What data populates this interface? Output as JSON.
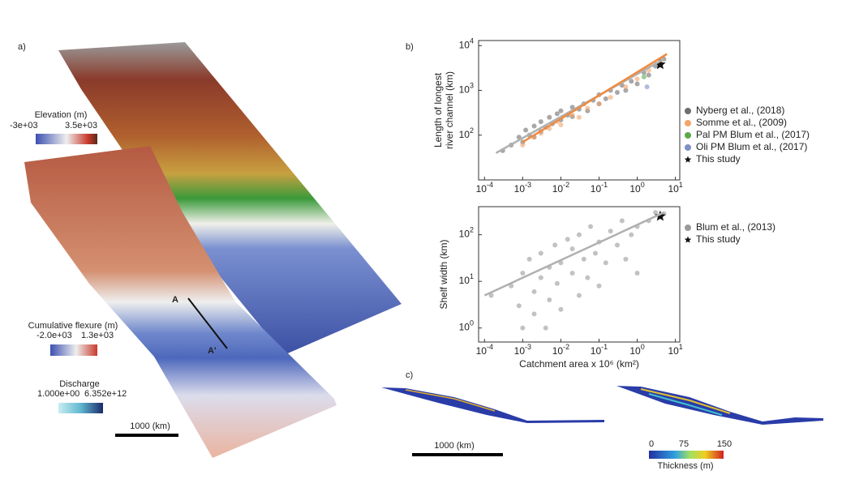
{
  "panel_a": {
    "label": "a)",
    "elevation_title": "Elevation (m)",
    "elevation_min": "-3e+03",
    "elevation_max": "3.5e+03",
    "flexure_title": "Cumulative flexure (m)",
    "flexure_min": "-2.0e+03",
    "flexure_max": "1.3e+03",
    "discharge_title": "Discharge",
    "discharge_min": "1.000e+00",
    "discharge_max": "6.352e+12",
    "scale": "1000 (km)",
    "section_start": "A",
    "section_end": "A'"
  },
  "panel_b_label": "b)",
  "panel_c": {
    "label": "c)",
    "scale": "1000 (km)",
    "thickness_min": "0",
    "thickness_mid": "75",
    "thickness_max": "150",
    "thickness_title": "Thickness (m)"
  },
  "chart_data": [
    {
      "type": "scatter",
      "ylabel": [
        "Length of longest",
        "river channel (km)"
      ],
      "log_x": true,
      "log_y": true,
      "xlim": [
        7e-05,
        13
      ],
      "ylim": [
        10,
        13000
      ],
      "xticks": [
        {
          "value": 0.0001,
          "label": "10",
          "exp": "-4"
        },
        {
          "value": 0.001,
          "label": "10",
          "exp": "-3"
        },
        {
          "value": 0.01,
          "label": "10",
          "exp": "-2"
        },
        {
          "value": 0.1,
          "label": "10",
          "exp": "-1"
        },
        {
          "value": 1,
          "label": "10",
          "exp": "0"
        },
        {
          "value": 10,
          "label": "10",
          "exp": "1"
        }
      ],
      "yticks": [
        {
          "value": 100,
          "label": "10",
          "exp": "2"
        },
        {
          "value": 1000,
          "label": "10",
          "exp": "3"
        },
        {
          "value": 10000,
          "label": "10",
          "exp": "4"
        }
      ],
      "series": [
        {
          "name": "Nyberg et al., (2018)",
          "color": "#6e6e6e",
          "marker": "dot",
          "x": [
            0.0003,
            0.0005,
            0.0008,
            0.001,
            0.0012,
            0.0015,
            0.002,
            0.002,
            0.003,
            0.003,
            0.004,
            0.005,
            0.006,
            0.008,
            0.01,
            0.01,
            0.015,
            0.02,
            0.02,
            0.03,
            0.04,
            0.05,
            0.07,
            0.1,
            0.1,
            0.15,
            0.2,
            0.3,
            0.4,
            0.5,
            0.7,
            1,
            1.5,
            2,
            3,
            5
          ],
          "values": [
            45,
            60,
            90,
            70,
            130,
            100,
            160,
            90,
            200,
            120,
            150,
            250,
            180,
            300,
            220,
            350,
            280,
            420,
            260,
            380,
            500,
            350,
            600,
            500,
            800,
            650,
            1000,
            900,
            1300,
            1000,
            1600,
            1400,
            2500,
            2200,
            3500,
            5000
          ]
        },
        {
          "name": "Somme et al., (2009)",
          "color": "#f4a46a",
          "marker": "dot",
          "x": [
            0.001,
            0.002,
            0.003,
            0.005,
            0.008,
            0.01,
            0.02,
            0.03,
            0.05,
            0.1,
            0.2,
            0.5,
            1,
            2,
            4
          ],
          "values": [
            60,
            90,
            110,
            140,
            200,
            170,
            280,
            250,
            400,
            500,
            700,
            1200,
            1800,
            2800,
            4500
          ]
        },
        {
          "name": "Pal PM Blum et al., (2017)",
          "color": "#5aaa4a",
          "marker": "dot",
          "x": [
            1.5
          ],
          "values": [
            2000
          ]
        },
        {
          "name": "Oli PM Blum et al., (2017)",
          "color": "#7f8fc8",
          "marker": "dot",
          "x": [
            1.8
          ],
          "values": [
            1200
          ]
        },
        {
          "name": "This study",
          "color": "#111111",
          "marker": "star",
          "x": [
            4
          ],
          "values": [
            3800
          ]
        }
      ],
      "fits": [
        {
          "color": "#b0b0b0",
          "x": [
            0.0002,
            5
          ],
          "values": [
            40,
            5000
          ]
        },
        {
          "color": "#f08a40",
          "x": [
            0.001,
            6
          ],
          "values": [
            70,
            6500
          ]
        }
      ]
    },
    {
      "type": "scatter",
      "ylabel": [
        "Shelf width (km)"
      ],
      "xlabel": "Catchment area x 10⁶ (km²)",
      "log_x": true,
      "log_y": true,
      "xlim": [
        7e-05,
        13
      ],
      "ylim": [
        0.5,
        400
      ],
      "xticks": [
        {
          "value": 0.0001,
          "label": "10",
          "exp": "-4"
        },
        {
          "value": 0.001,
          "label": "10",
          "exp": "-3"
        },
        {
          "value": 0.01,
          "label": "10",
          "exp": "-2"
        },
        {
          "value": 0.1,
          "label": "10",
          "exp": "-1"
        },
        {
          "value": 1,
          "label": "10",
          "exp": "0"
        },
        {
          "value": 10,
          "label": "10",
          "exp": "1"
        }
      ],
      "yticks": [
        {
          "value": 1,
          "label": "10",
          "exp": "0"
        },
        {
          "value": 10,
          "label": "10",
          "exp": "1"
        },
        {
          "value": 100,
          "label": "10",
          "exp": "2"
        }
      ],
      "series": [
        {
          "name": "Blum et al., (2013)",
          "color": "#9a9a9a",
          "marker": "dot",
          "x": [
            0.00015,
            0.0005,
            0.0008,
            0.001,
            0.001,
            0.0015,
            0.002,
            0.002,
            0.003,
            0.003,
            0.004,
            0.005,
            0.005,
            0.007,
            0.008,
            0.01,
            0.01,
            0.015,
            0.02,
            0.02,
            0.03,
            0.03,
            0.04,
            0.05,
            0.06,
            0.08,
            0.1,
            0.1,
            0.15,
            0.2,
            0.3,
            0.4,
            0.5,
            0.7,
            1,
            1,
            2,
            3,
            5
          ],
          "values": [
            5,
            8,
            3,
            15,
            1,
            30,
            6,
            2,
            40,
            12,
            1,
            20,
            4,
            60,
            9,
            25,
            2.5,
            80,
            15,
            50,
            5,
            100,
            30,
            12,
            150,
            40,
            70,
            8,
            25,
            120,
            60,
            200,
            30,
            100,
            150,
            15,
            200,
            300,
            280
          ]
        },
        {
          "name": "This study",
          "color": "#111111",
          "marker": "star",
          "x": [
            4
          ],
          "values": [
            250
          ]
        }
      ],
      "fits": [
        {
          "color": "#b0b0b0",
          "x": [
            0.0001,
            5
          ],
          "values": [
            5,
            300
          ]
        }
      ]
    }
  ]
}
